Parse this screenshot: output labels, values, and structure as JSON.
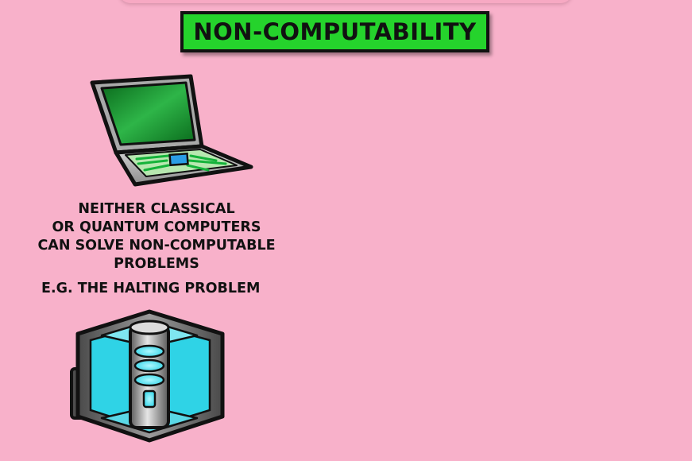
{
  "title": {
    "text": "NON-COMPUTABILITY"
  },
  "caption": {
    "lines": [
      "NEITHER CLASSICAL",
      "OR QUANTUM COMPUTERS",
      "CAN SOLVE  NON-COMPUTABLE",
      "PROBLEMS"
    ],
    "example": "E.G. THE HALTING PROBLEM"
  },
  "icons": {
    "laptop": "laptop-icon",
    "quantum_computer": "quantum-computer-icon"
  },
  "colors": {
    "background": "#f8b1ca",
    "banner": "#25d32c",
    "screen": "#0f8a2a",
    "circuit": "#22c63f",
    "chip": "#2b9de6",
    "quantum_cyan": "#2fd3e6"
  }
}
